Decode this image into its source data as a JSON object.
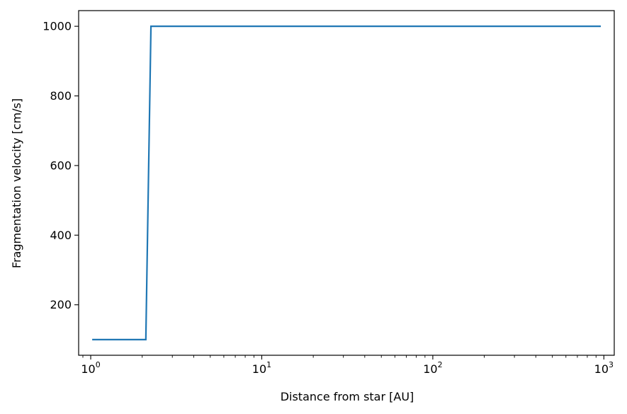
{
  "chart_data": {
    "type": "line",
    "title": "",
    "xlabel": "Distance from star [AU]",
    "ylabel": "Fragmentation velocity [cm/s]",
    "xscale": "log",
    "xlim": [
      0.85,
      1150
    ],
    "ylim": [
      55,
      1045
    ],
    "x_major_ticks": [
      {
        "value": 1,
        "base": "10",
        "exp": "0"
      },
      {
        "value": 10,
        "base": "10",
        "exp": "1"
      },
      {
        "value": 100,
        "base": "10",
        "exp": "2"
      },
      {
        "value": 1000,
        "base": "10",
        "exp": "3"
      }
    ],
    "y_ticks": [
      200,
      400,
      600,
      800,
      1000
    ],
    "y_tick_labels": [
      "200",
      "400",
      "600",
      "800",
      "1000"
    ],
    "grid": false,
    "series": [
      {
        "color": "#1f77b4",
        "x": [
          1.02,
          2.1,
          2.25,
          960
        ],
        "y": [
          100,
          100,
          1000,
          1000
        ]
      }
    ]
  }
}
